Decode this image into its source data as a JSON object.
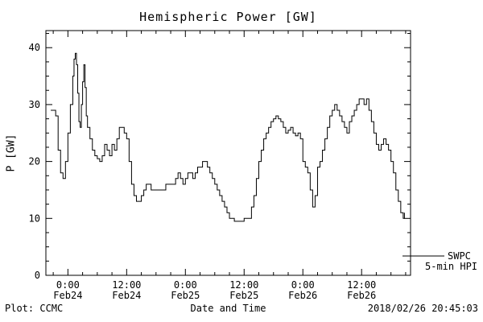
{
  "header": {
    "title": "Hemispheric Power [GW]"
  },
  "axes": {
    "ylabel": "P [GW]",
    "xlabel": "Date and Time"
  },
  "footer": {
    "left": "Plot: CCMC",
    "right": "2018/02/26 20:45:03"
  },
  "legend": {
    "line1": "SWPC",
    "line2": "5-min HPI"
  },
  "chart_data": {
    "type": "line",
    "title": "Hemispheric Power [GW]",
    "xlabel": "Date and Time",
    "ylabel": "P [GW]",
    "ylim": [
      0,
      43
    ],
    "xlim": [
      -4.5,
      70
    ],
    "x_unit": "hours since 2018-02-24 00:00",
    "grid": false,
    "line_color": "#000000",
    "legend_position": "right-outside-bottom",
    "y_ticks": [
      0,
      10,
      20,
      30,
      40
    ],
    "y_minor_step": 2.5,
    "x_minor_step": 3,
    "x_ticks": [
      {
        "t": 0,
        "label": "0:00",
        "sub": "Feb24"
      },
      {
        "t": 12,
        "label": "12:00",
        "sub": "Feb24"
      },
      {
        "t": 24,
        "label": "0:00",
        "sub": "Feb25"
      },
      {
        "t": 36,
        "label": "12:00",
        "sub": "Feb25"
      },
      {
        "t": 48,
        "label": "0:00",
        "sub": "Feb26"
      },
      {
        "t": 60,
        "label": "12:00",
        "sub": "Feb26"
      }
    ],
    "series": [
      {
        "name": "SWPC 5-min HPI",
        "color": "#000000",
        "step": true,
        "points": [
          [
            -3.5,
            29
          ],
          [
            -3,
            29
          ],
          [
            -2.5,
            28
          ],
          [
            -2,
            22
          ],
          [
            -1.5,
            18
          ],
          [
            -1,
            17
          ],
          [
            -0.5,
            20
          ],
          [
            0,
            25
          ],
          [
            0.5,
            30
          ],
          [
            1,
            35
          ],
          [
            1.25,
            38
          ],
          [
            1.5,
            39
          ],
          [
            1.75,
            37
          ],
          [
            2,
            32
          ],
          [
            2.25,
            27
          ],
          [
            2.5,
            26
          ],
          [
            2.75,
            30
          ],
          [
            3,
            34
          ],
          [
            3.25,
            37
          ],
          [
            3.5,
            33
          ],
          [
            3.75,
            28
          ],
          [
            4,
            26
          ],
          [
            4.5,
            24
          ],
          [
            5,
            22
          ],
          [
            5.5,
            21
          ],
          [
            6,
            20.5
          ],
          [
            6.5,
            20
          ],
          [
            7,
            21
          ],
          [
            7.5,
            23
          ],
          [
            8,
            22
          ],
          [
            8.5,
            21
          ],
          [
            9,
            23
          ],
          [
            9.5,
            22
          ],
          [
            10,
            24
          ],
          [
            10.5,
            26
          ],
          [
            11,
            26
          ],
          [
            11.5,
            25
          ],
          [
            12,
            24
          ],
          [
            12.5,
            20
          ],
          [
            13,
            16
          ],
          [
            13.5,
            14
          ],
          [
            14,
            13
          ],
          [
            14.5,
            13
          ],
          [
            15,
            14
          ],
          [
            15.5,
            15
          ],
          [
            16,
            16
          ],
          [
            17,
            15
          ],
          [
            18,
            15
          ],
          [
            19,
            15
          ],
          [
            20,
            16
          ],
          [
            21,
            16
          ],
          [
            22,
            17
          ],
          [
            22.5,
            18
          ],
          [
            23,
            17
          ],
          [
            23.5,
            16
          ],
          [
            24,
            17
          ],
          [
            24.5,
            18
          ],
          [
            25,
            18
          ],
          [
            25.5,
            17
          ],
          [
            26,
            18
          ],
          [
            26.5,
            19
          ],
          [
            27,
            19
          ],
          [
            27.5,
            20
          ],
          [
            28,
            20
          ],
          [
            28.5,
            19
          ],
          [
            29,
            18
          ],
          [
            29.5,
            17
          ],
          [
            30,
            16
          ],
          [
            30.5,
            15
          ],
          [
            31,
            14
          ],
          [
            31.5,
            13
          ],
          [
            32,
            12
          ],
          [
            32.5,
            11
          ],
          [
            33,
            10
          ],
          [
            34,
            9.5
          ],
          [
            35,
            9.5
          ],
          [
            36,
            10
          ],
          [
            37,
            10
          ],
          [
            37.5,
            12
          ],
          [
            38,
            14
          ],
          [
            38.5,
            17
          ],
          [
            39,
            20
          ],
          [
            39.5,
            22
          ],
          [
            40,
            24
          ],
          [
            40.5,
            25
          ],
          [
            41,
            26
          ],
          [
            41.5,
            27
          ],
          [
            42,
            27.5
          ],
          [
            42.5,
            28
          ],
          [
            43,
            27.5
          ],
          [
            43.5,
            27
          ],
          [
            44,
            26
          ],
          [
            44.5,
            25
          ],
          [
            45,
            25.5
          ],
          [
            45.5,
            26
          ],
          [
            46,
            25
          ],
          [
            46.5,
            24.5
          ],
          [
            47,
            25
          ],
          [
            47.5,
            24
          ],
          [
            48,
            20
          ],
          [
            48.5,
            19
          ],
          [
            49,
            18
          ],
          [
            49.5,
            15
          ],
          [
            50,
            12
          ],
          [
            50.5,
            14
          ],
          [
            51,
            19
          ],
          [
            51.5,
            20
          ],
          [
            52,
            22
          ],
          [
            52.5,
            24
          ],
          [
            53,
            26
          ],
          [
            53.5,
            28
          ],
          [
            54,
            29
          ],
          [
            54.5,
            30
          ],
          [
            55,
            29
          ],
          [
            55.5,
            28
          ],
          [
            56,
            27
          ],
          [
            56.5,
            26
          ],
          [
            57,
            25
          ],
          [
            57.5,
            27
          ],
          [
            58,
            28
          ],
          [
            58.5,
            29
          ],
          [
            59,
            30
          ],
          [
            59.5,
            31
          ],
          [
            60,
            31
          ],
          [
            60.5,
            30
          ],
          [
            61,
            31
          ],
          [
            61.5,
            29
          ],
          [
            62,
            27
          ],
          [
            62.5,
            25
          ],
          [
            63,
            23
          ],
          [
            63.5,
            22
          ],
          [
            64,
            23
          ],
          [
            64.5,
            24
          ],
          [
            65,
            23
          ],
          [
            65.5,
            22
          ],
          [
            66,
            20
          ],
          [
            66.5,
            18
          ],
          [
            67,
            15
          ],
          [
            67.5,
            13
          ],
          [
            68,
            11
          ],
          [
            68.5,
            10
          ],
          [
            68.75,
            11
          ]
        ]
      }
    ]
  }
}
